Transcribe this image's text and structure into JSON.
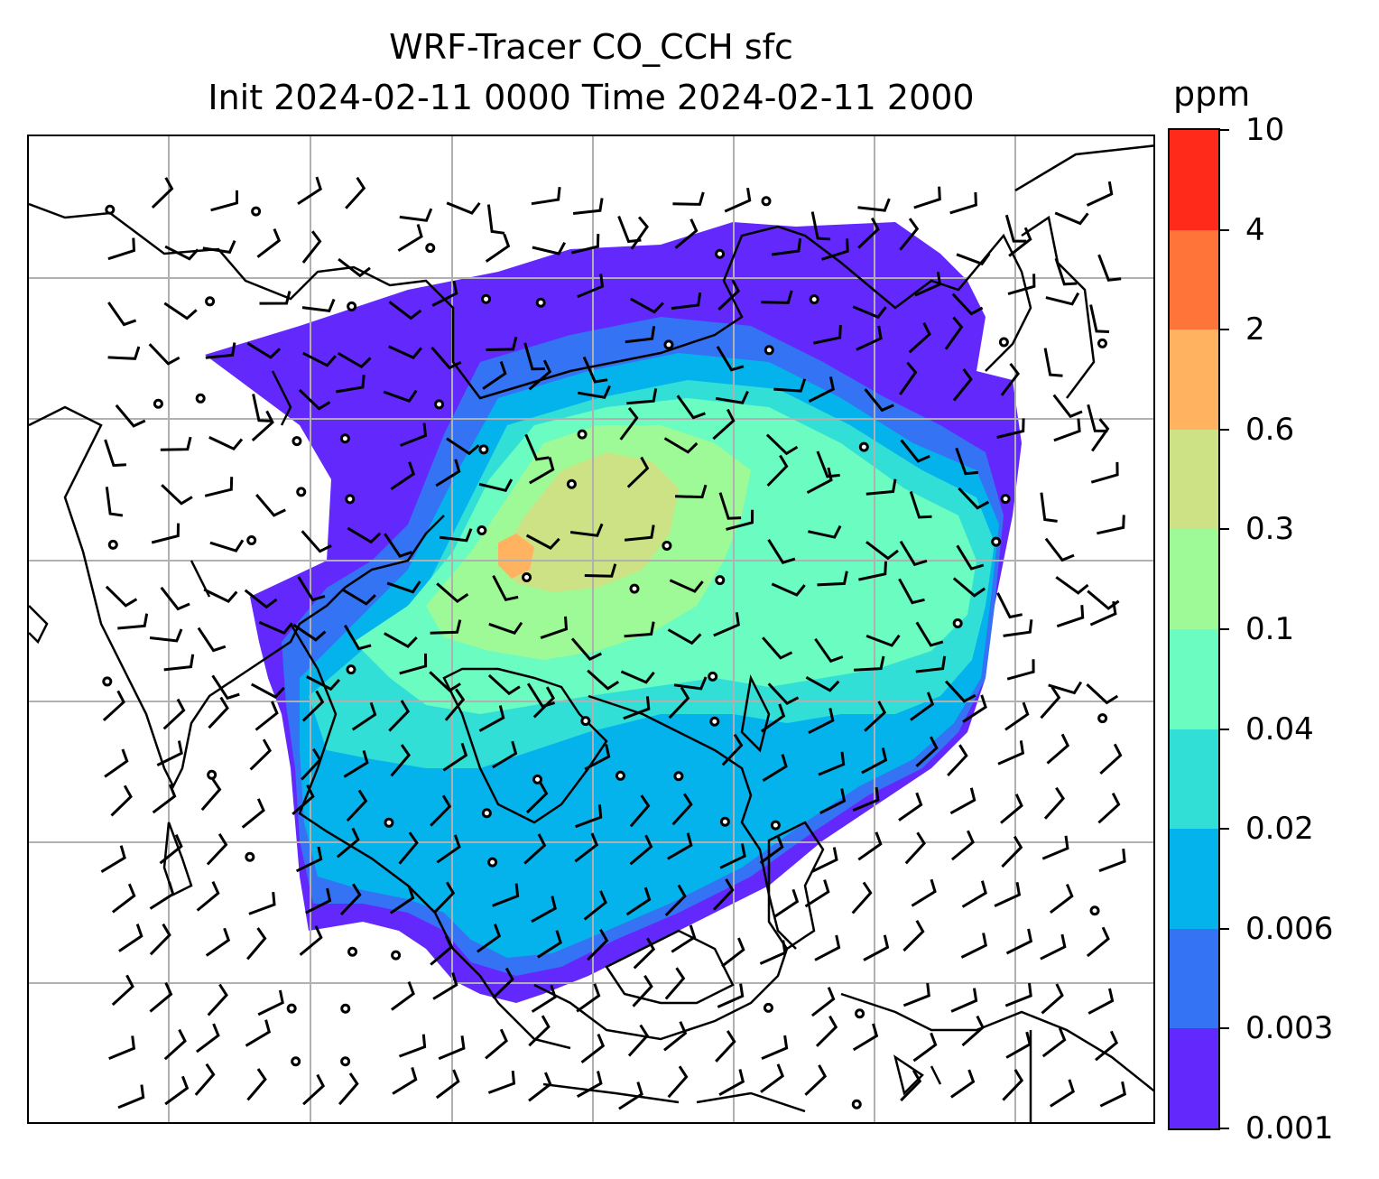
{
  "title": {
    "line1": "WRF-Tracer CO_CCH sfc",
    "line2": "Init 2024-02-11 0000 Time 2024-02-11 2000"
  },
  "colorbar": {
    "unit": "ppm",
    "levels": [
      "0.001",
      "0.003",
      "0.006",
      "0.02",
      "0.04",
      "0.1",
      "0.3",
      "0.6",
      "2",
      "4",
      "10"
    ],
    "colors": [
      "#6328fc",
      "#3473f4",
      "#05b3ec",
      "#31dfd6",
      "#6afcc1",
      "#9efa96",
      "#cde285",
      "#ffb360",
      "#ff7439",
      "#ff2a1a"
    ]
  },
  "map": {
    "gridlines": true,
    "gridline_color": "#b0b0b0",
    "coastline_color": "#000000",
    "field": "CO_CCH",
    "wind_barbs": true
  }
}
